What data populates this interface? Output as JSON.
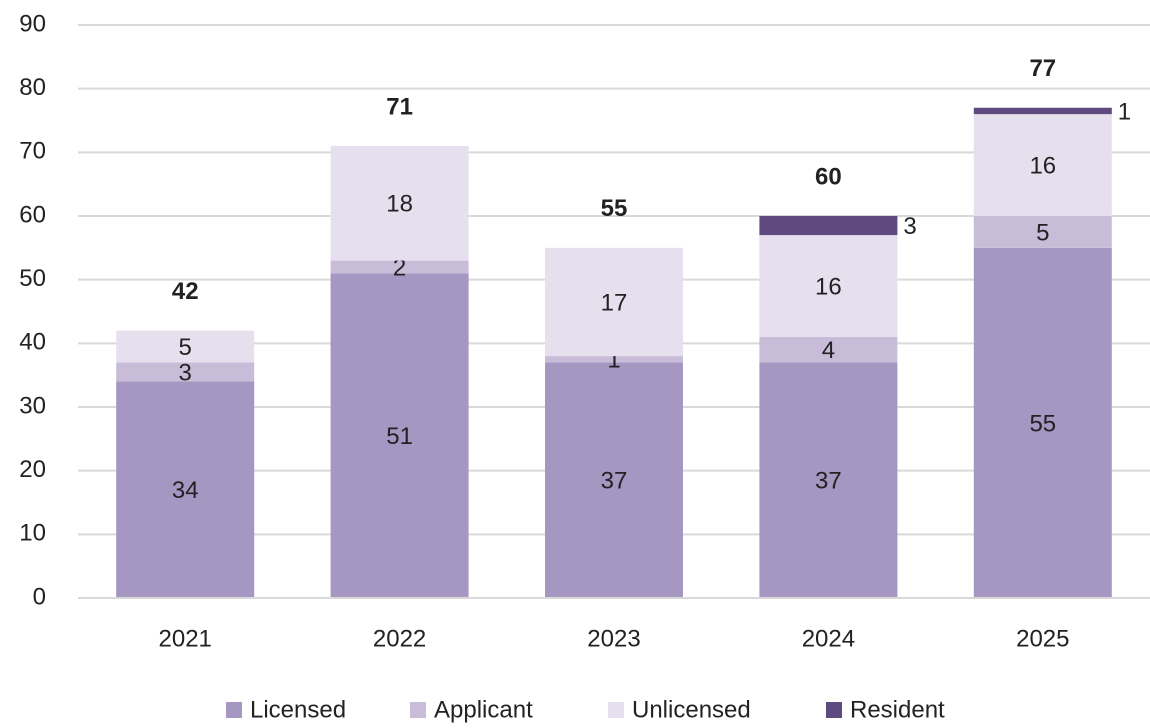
{
  "chart_data": {
    "type": "stacked_bar",
    "categories": [
      "2021",
      "2022",
      "2023",
      "2024",
      "2025"
    ],
    "series": [
      {
        "name": "Licensed",
        "color": "#a696c2",
        "values": [
          34,
          51,
          37,
          37,
          55
        ]
      },
      {
        "name": "Applicant",
        "color": "#c8bcd9",
        "values": [
          3,
          2,
          1,
          4,
          5
        ]
      },
      {
        "name": "Unlicensed",
        "color": "#e6e0ee",
        "values": [
          5,
          18,
          17,
          16,
          16
        ]
      },
      {
        "name": "Resident",
        "color": "#5f4a80",
        "values": [
          null,
          null,
          null,
          3,
          1
        ]
      }
    ],
    "totals": [
      42,
      71,
      55,
      60,
      77
    ],
    "ylim": [
      0,
      90
    ],
    "yticks": [
      0,
      10,
      20,
      30,
      40,
      50,
      60,
      70,
      80,
      90
    ],
    "grid": true,
    "legend": "bottom"
  }
}
